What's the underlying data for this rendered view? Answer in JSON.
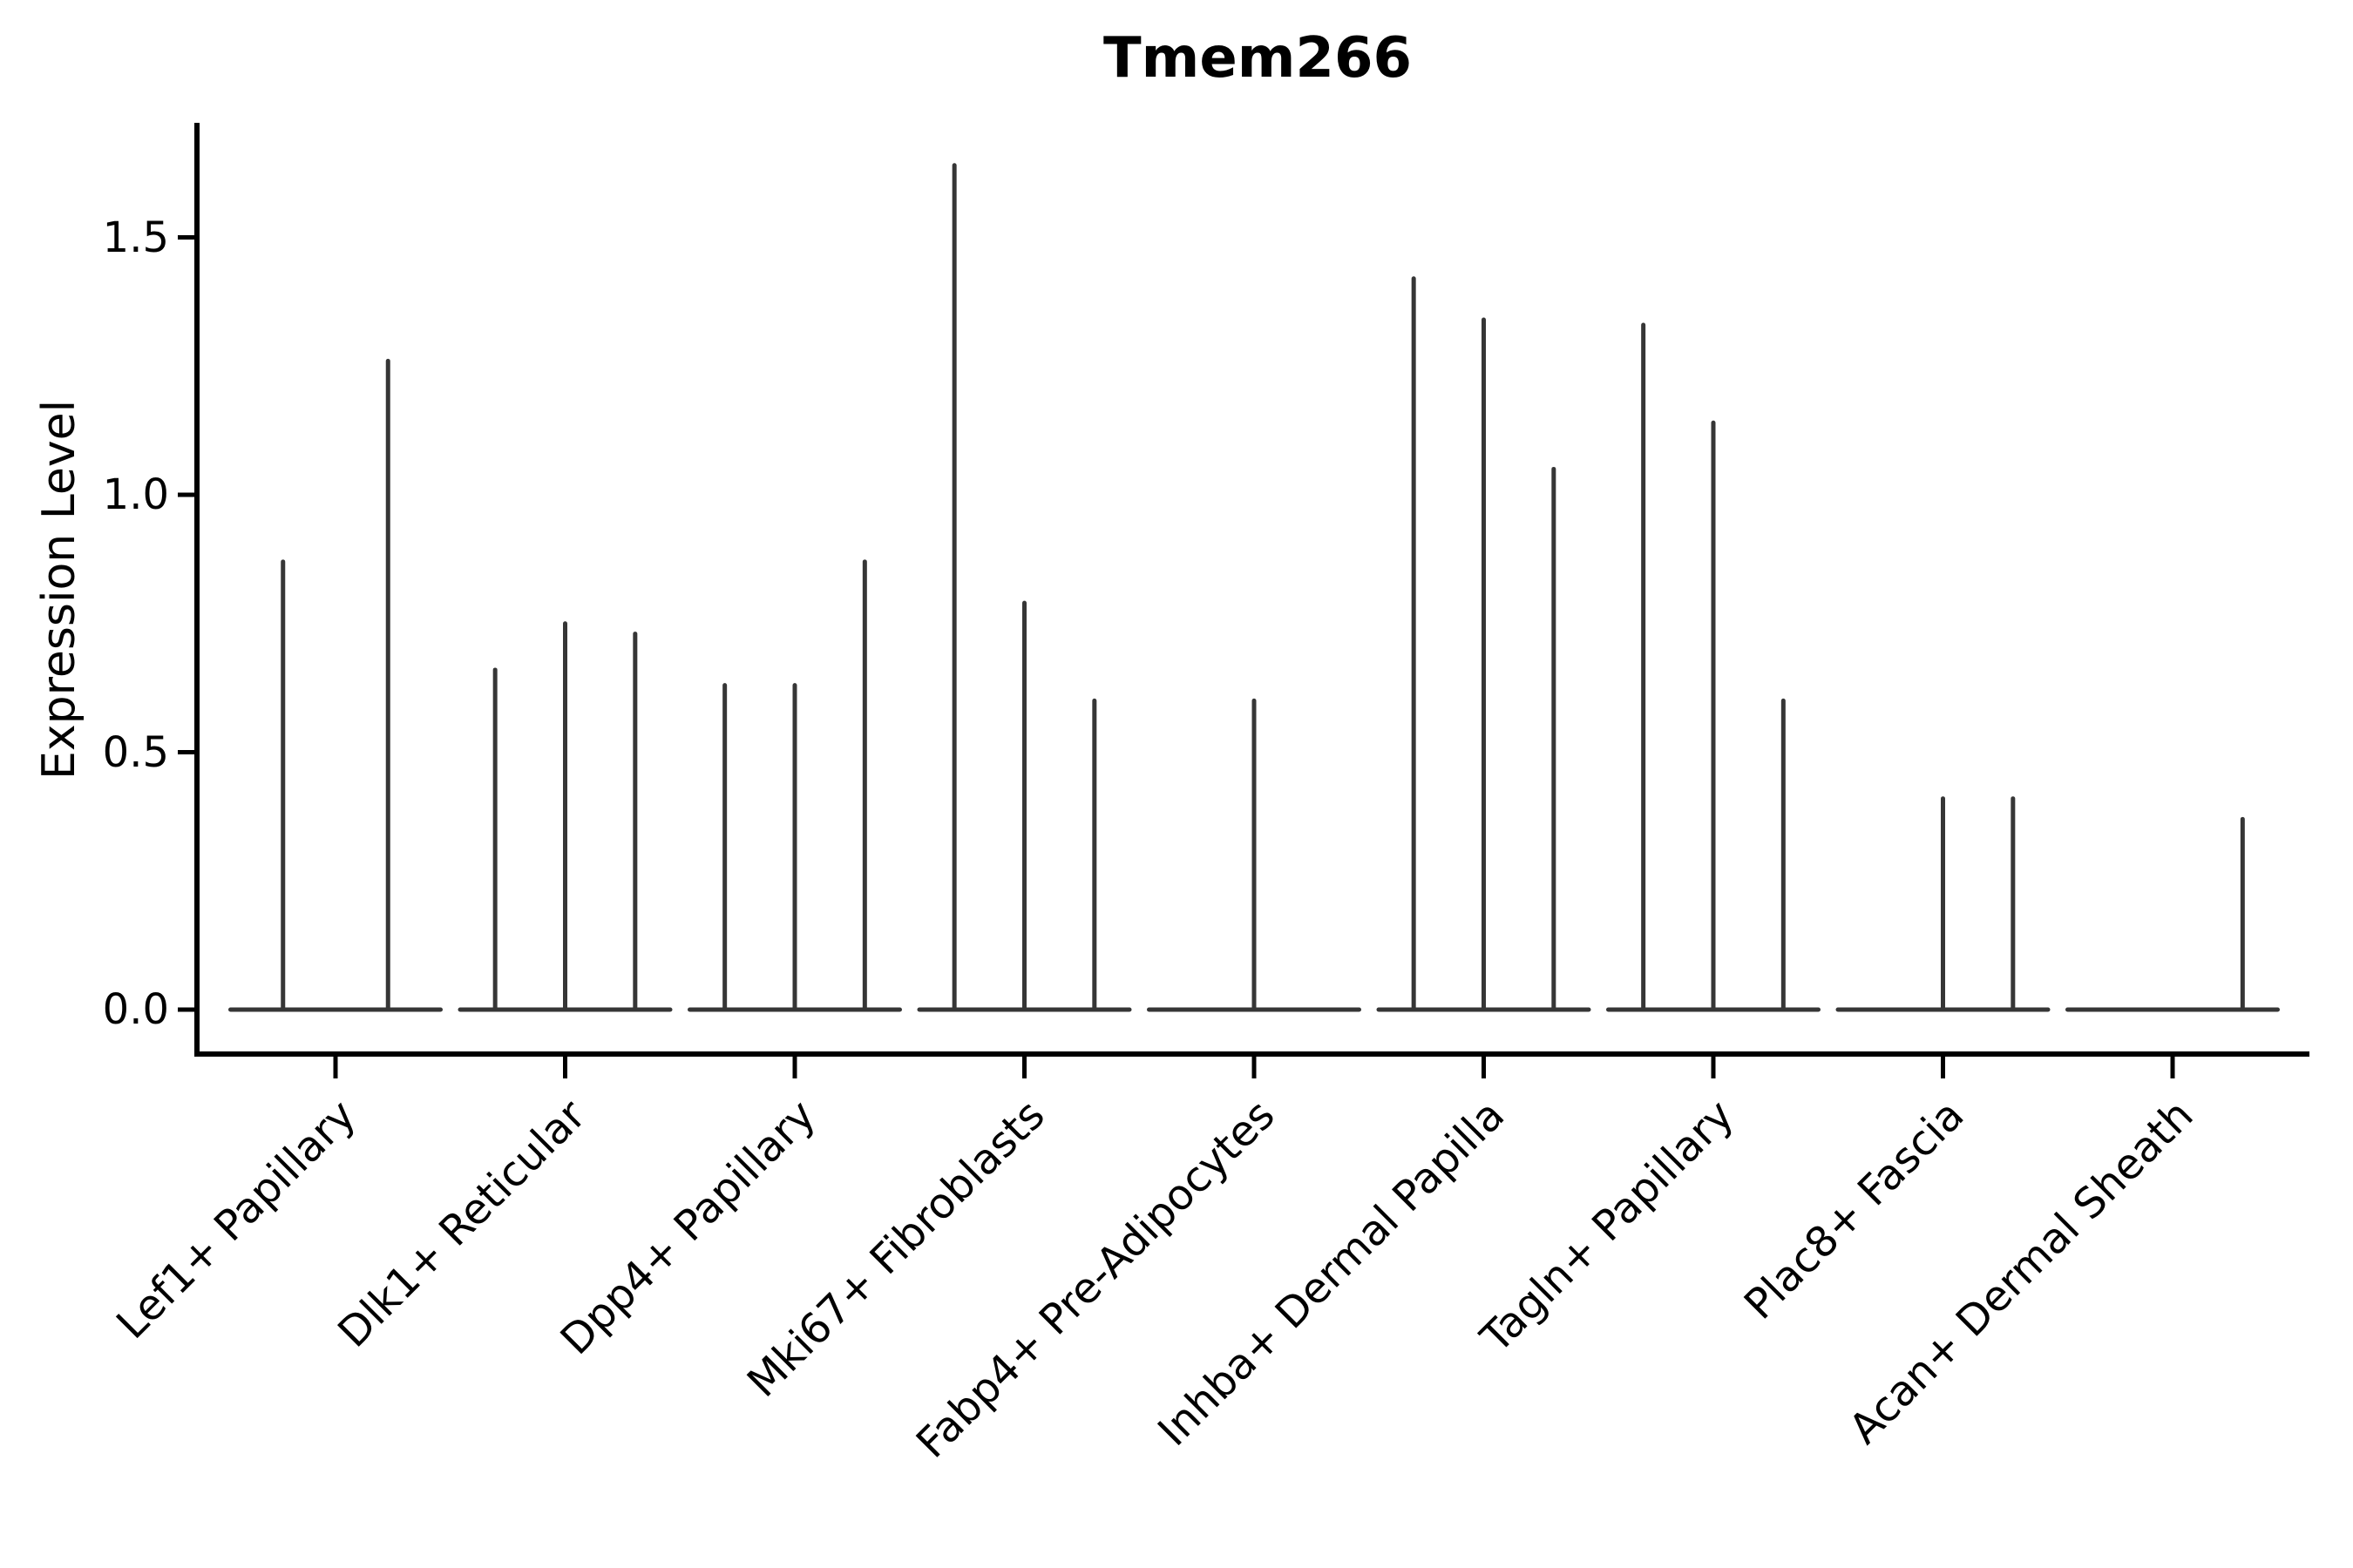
{
  "chart_data": {
    "type": "violin",
    "title": "Tmem266",
    "ylabel": "Expression Level",
    "xlabel": "",
    "ylim": [
      0,
      1.72
    ],
    "yticks": [
      "0.0",
      "0.5",
      "1.0",
      "1.5"
    ],
    "ytick_values": [
      0.0,
      0.5,
      1.0,
      1.5
    ],
    "grid": false,
    "legend": "none",
    "baseline_at_zero": true,
    "categories": [
      "Lef1+ Papillary",
      "Dlk1+ Reticular",
      "Dpp4+ Papillary",
      "Mki67+ Fibroblasts",
      "Fabp4+ Pre-Adipocytes",
      "Inhba+ Dermal Papilla",
      "Tagln+ Papillary",
      "Plac8+ Fascia",
      "Acan+ Dermal Sheath"
    ],
    "groups": [
      {
        "category": "Lef1+ Papillary",
        "n_slots": 2,
        "violins": [
          {
            "slot": 0,
            "max": 0.87
          },
          {
            "slot": 1,
            "max": 1.26
          }
        ]
      },
      {
        "category": "Dlk1+ Reticular",
        "n_slots": 3,
        "violins": [
          {
            "slot": 0,
            "max": 0.66
          },
          {
            "slot": 1,
            "max": 0.75
          },
          {
            "slot": 2,
            "max": 0.73
          }
        ]
      },
      {
        "category": "Dpp4+ Papillary",
        "n_slots": 3,
        "violins": [
          {
            "slot": 0,
            "max": 0.63
          },
          {
            "slot": 1,
            "max": 0.63
          },
          {
            "slot": 2,
            "max": 0.87
          }
        ]
      },
      {
        "category": "Mki67+ Fibroblasts",
        "n_slots": 3,
        "violins": [
          {
            "slot": 0,
            "max": 1.64
          },
          {
            "slot": 1,
            "max": 0.79
          },
          {
            "slot": 2,
            "max": 0.6
          }
        ]
      },
      {
        "category": "Fabp4+ Pre-Adipocytes",
        "n_slots": 3,
        "violins": [
          {
            "slot": 1,
            "max": 0.6
          }
        ]
      },
      {
        "category": "Inhba+ Dermal Papilla",
        "n_slots": 3,
        "violins": [
          {
            "slot": 0,
            "max": 1.42
          },
          {
            "slot": 1,
            "max": 1.34
          },
          {
            "slot": 2,
            "max": 1.05
          }
        ]
      },
      {
        "category": "Tagln+ Papillary",
        "n_slots": 3,
        "violins": [
          {
            "slot": 0,
            "max": 1.33
          },
          {
            "slot": 1,
            "max": 1.14
          },
          {
            "slot": 2,
            "max": 0.6
          }
        ]
      },
      {
        "category": "Plac8+ Fascia",
        "n_slots": 3,
        "violins": [
          {
            "slot": 1,
            "max": 0.41
          },
          {
            "slot": 2,
            "max": 0.41
          }
        ]
      },
      {
        "category": "Acan+ Dermal Sheath",
        "n_slots": 3,
        "violins": [
          {
            "slot": 2,
            "max": 0.37
          }
        ]
      }
    ],
    "colors": {
      "violin": "#363636",
      "axis": "#000000",
      "text": "#000000",
      "background": "#ffffff"
    }
  }
}
